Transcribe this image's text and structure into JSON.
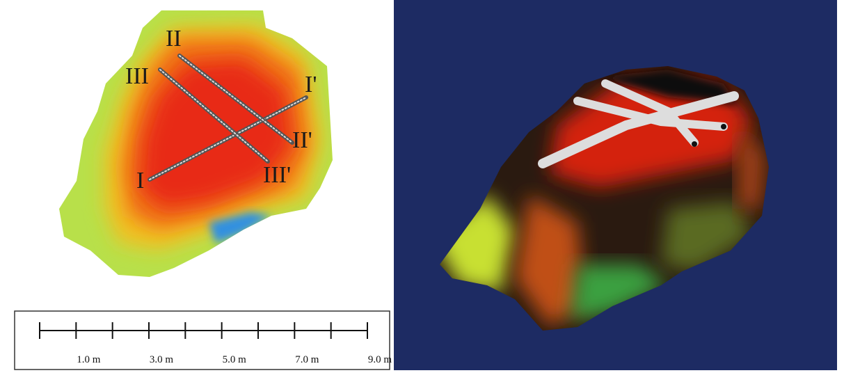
{
  "map_panel": {
    "section_labels": [
      "I",
      "I'",
      "II",
      "II'",
      "III",
      "III'"
    ]
  },
  "scale_bar": {
    "labels": [
      "1.0 m",
      "3.0 m",
      "5.0 m",
      "7.0 m",
      "9.0 m"
    ]
  }
}
